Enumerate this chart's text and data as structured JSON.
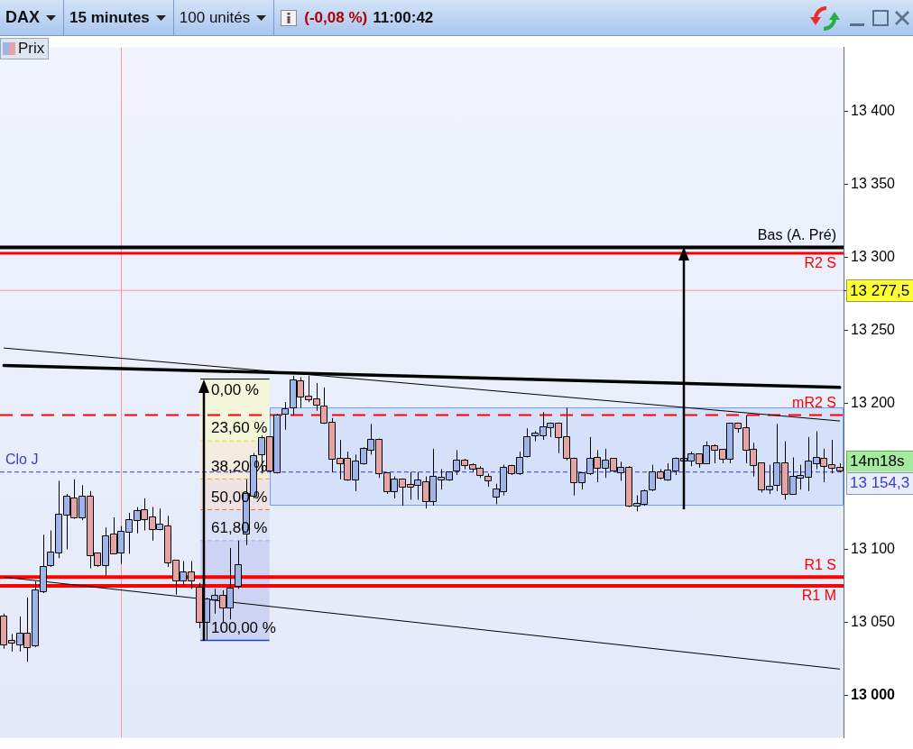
{
  "chart_data": {
    "type": "candlestick",
    "title": "DAX",
    "annotations": [
      "15 minutes",
      "100 unités",
      "(-0,08 %)",
      "11:00:42",
      "14m18s",
      "13 154,3",
      {
        "text": "0,00 %",
        "y": 13216.7
      },
      {
        "text": "23,60 %",
        "y": 13174.4
      },
      {
        "text": "38,20 %",
        "y": 13148.3
      },
      {
        "text": "50,00 %",
        "y": 13127.2
      },
      {
        "text": "61,80 %",
        "y": 13106.1
      },
      {
        "text": "100,00 %",
        "y": 13037.6
      }
    ],
    "categories": [
      null,
      null,
      null,
      null,
      null,
      null,
      null,
      null,
      null,
      null,
      null,
      null,
      null,
      null,
      null,
      null,
      null,
      null,
      null,
      null,
      null,
      null,
      null,
      null,
      null,
      null,
      null,
      null,
      null,
      null,
      null,
      null,
      null,
      null,
      null,
      null,
      null,
      null,
      null,
      null,
      null,
      null,
      null,
      null,
      null,
      null,
      null,
      null,
      null,
      null,
      null,
      null,
      null,
      null,
      null,
      null,
      null,
      null,
      null,
      null,
      null,
      null,
      null,
      null,
      null,
      null,
      null,
      null,
      null,
      null,
      null,
      null,
      null,
      null,
      null,
      null,
      null,
      null,
      null,
      null,
      null,
      null,
      null,
      null,
      null,
      null,
      null,
      null,
      null,
      null,
      null,
      null,
      null,
      null,
      null,
      null,
      null,
      null,
      null,
      null,
      null,
      null,
      null,
      null,
      null,
      null,
      null,
      null
    ],
    "series": [
      {
        "name": "Prix",
        "ohlc": [
          [
            13054,
            13056,
            13032,
            13035
          ],
          [
            13037,
            13042,
            13030,
            13036
          ],
          [
            13035,
            13054,
            13030,
            13042
          ],
          [
            13042,
            13067,
            13023,
            13033
          ],
          [
            13034,
            13078,
            13033,
            13072
          ],
          [
            13071,
            13110,
            13070,
            13088
          ],
          [
            13089,
            13113,
            13088,
            13098
          ],
          [
            13098,
            13147,
            13094,
            13124
          ],
          [
            13124,
            13138,
            13100,
            13136
          ],
          [
            13135,
            13148,
            13121,
            13122
          ],
          [
            13122,
            13144,
            13120,
            13136
          ],
          [
            13136,
            13140,
            13087,
            13096
          ],
          [
            13097,
            13097,
            13088,
            13089
          ],
          [
            13089,
            13115,
            13082,
            13109
          ],
          [
            13110,
            13122,
            13097,
            13097
          ],
          [
            13098,
            13116,
            13090,
            13112
          ],
          [
            13112,
            13125,
            13097,
            13120
          ],
          [
            13120,
            13129,
            13111,
            13126
          ],
          [
            13127,
            13135,
            13113,
            13121
          ],
          [
            13122,
            13129,
            13106,
            13114
          ],
          [
            13114,
            13128,
            13113,
            13117
          ],
          [
            13116,
            13123,
            13088,
            13091
          ],
          [
            13092,
            13092,
            13069,
            13079
          ],
          [
            13079,
            13092,
            13076,
            13084
          ],
          [
            13084,
            13092,
            13073,
            13079
          ],
          [
            13074,
            13077,
            13046,
            13050
          ],
          [
            13050,
            13067,
            13038,
            13066
          ],
          [
            13066,
            13073,
            13056,
            13068
          ],
          [
            13068,
            13072,
            13050,
            13060
          ],
          [
            13060,
            13101,
            13052,
            13073
          ],
          [
            13075,
            13106,
            13073,
            13089
          ],
          [
            13111,
            13148,
            13103,
            13138
          ],
          [
            13137,
            13166,
            13135,
            13164
          ],
          [
            13165,
            13178,
            13152,
            13176
          ],
          [
            13177,
            13177,
            13153,
            13154
          ],
          [
            13153,
            13193,
            13152,
            13192
          ],
          [
            13193,
            13201,
            13182,
            13196
          ],
          [
            13197,
            13219,
            13192,
            13216
          ],
          [
            13215,
            13218,
            13197,
            13205
          ],
          [
            13205,
            13219,
            13201,
            13203
          ],
          [
            13203,
            13214,
            13195,
            13199
          ],
          [
            13198,
            13211,
            13186,
            13187
          ],
          [
            13187,
            13190,
            13153,
            13162
          ],
          [
            13162,
            13175,
            13148,
            13159
          ],
          [
            13162,
            13167,
            13147,
            13148
          ],
          [
            13148,
            13165,
            13140,
            13160
          ],
          [
            13159,
            13170,
            13158,
            13169
          ],
          [
            13168,
            13186,
            13165,
            13175
          ],
          [
            13175,
            13176,
            13149,
            13152
          ],
          [
            13152,
            13152,
            13138,
            13140
          ],
          [
            13140,
            13150,
            13135,
            13148
          ],
          [
            13148,
            13148,
            13130,
            13143
          ],
          [
            13144,
            13153,
            13134,
            13143
          ],
          [
            13144,
            13153,
            13134,
            13147
          ],
          [
            13146,
            13150,
            13128,
            13133
          ],
          [
            13133,
            13169,
            13130,
            13150
          ],
          [
            13148,
            13155,
            13141,
            13148
          ],
          [
            13148,
            13153,
            13147,
            13153
          ],
          [
            13154,
            13168,
            13151,
            13161
          ],
          [
            13161,
            13162,
            13155,
            13158
          ],
          [
            13158,
            13159,
            13153,
            13155
          ],
          [
            13155,
            13157,
            13149,
            13151
          ],
          [
            13150,
            13152,
            13143,
            13147
          ],
          [
            13136,
            13145,
            13131,
            13141
          ],
          [
            13140,
            13158,
            13137,
            13156
          ],
          [
            13157,
            13158,
            13151,
            13152
          ],
          [
            13152,
            13167,
            13151,
            13163
          ],
          [
            13164,
            13183,
            13163,
            13177
          ],
          [
            13178,
            13181,
            13174,
            13178
          ],
          [
            13178,
            13194,
            13175,
            13184
          ],
          [
            13184,
            13187,
            13177,
            13186
          ],
          [
            13186,
            13187,
            13166,
            13177
          ],
          [
            13177,
            13197,
            13161,
            13163
          ],
          [
            13162,
            13163,
            13137,
            13146
          ],
          [
            13146,
            13152,
            13141,
            13152
          ],
          [
            13152,
            13177,
            13151,
            13162
          ],
          [
            13163,
            13168,
            13146,
            13156
          ],
          [
            13156,
            13169,
            13149,
            13161
          ],
          [
            13162,
            13162,
            13153,
            13154
          ],
          [
            13153,
            13160,
            13147,
            13156
          ],
          [
            13156,
            13157,
            13129,
            13130
          ],
          [
            13130,
            13137,
            13126,
            13130
          ],
          [
            13131,
            13141,
            13130,
            13140
          ],
          [
            13141,
            13158,
            13140,
            13153
          ],
          [
            13153,
            13155,
            13148,
            13149
          ],
          [
            13148,
            13159,
            13147,
            13154
          ],
          [
            13154,
            13163,
            13151,
            13162
          ],
          [
            13161,
            13163,
            13160,
            13162
          ],
          [
            13161,
            13167,
            13157,
            13165
          ],
          [
            13165,
            13165,
            13156,
            13159
          ],
          [
            13159,
            13174,
            13159,
            13171
          ],
          [
            13171,
            13172,
            13159,
            13168
          ],
          [
            13168,
            13168,
            13159,
            13162
          ],
          [
            13162,
            13186,
            13159,
            13186
          ],
          [
            13186,
            13187,
            13180,
            13183
          ],
          [
            13183,
            13192,
            13159,
            13168
          ],
          [
            13168,
            13173,
            13150,
            13158
          ],
          [
            13159,
            13159,
            13139,
            13141
          ],
          [
            13141,
            13158,
            13138,
            13143
          ],
          [
            13144,
            13186,
            13140,
            13159
          ],
          [
            13159,
            13174,
            13134,
            13138
          ],
          [
            13138,
            13163,
            13138,
            13150
          ],
          [
            13149,
            13158,
            13141,
            13150
          ],
          [
            13150,
            13177,
            13140,
            13160
          ],
          [
            13159,
            13181,
            13155,
            13163
          ],
          [
            13162,
            13169,
            13146,
            13157
          ],
          [
            13158,
            13175,
            13152,
            13156
          ],
          [
            13156,
            13159,
            13153,
            13154.3
          ]
        ],
        "colors": [
          "#e5a3a5",
          "#e5a3a5",
          "#9db5e9",
          "#e5a3a5",
          "#9db5e9",
          "#9db5e9",
          "#9db5e9",
          "#9db5e9",
          "#9db5e9",
          "#e5a3a5",
          "#9db5e9",
          "#e5a3a5",
          "#e5a3a5",
          "#9db5e9",
          "#e5a3a5",
          "#9db5e9",
          "#9db5e9",
          "#9db5e9",
          "#e5a3a5",
          "#e5a3a5",
          "#9db5e9",
          "#e5a3a5",
          "#e5a3a5",
          "#9db5e9",
          "#e5a3a5",
          "#e5a3a5",
          "#9db5e9",
          "#9db5e9",
          "#e5a3a5",
          "#9db5e9",
          "#9db5e9",
          "#9db5e9",
          "#9db5e9",
          "#9db5e9",
          "#e5a3a5",
          "#9db5e9",
          "#9db5e9",
          "#9db5e9",
          "#e5a3a5",
          "#e5a3a5",
          "#e5a3a5",
          "#e5a3a5",
          "#e5a3a5",
          "#e5a3a5",
          "#e5a3a5",
          "#9db5e9",
          "#9db5e9",
          "#9db5e9",
          "#e5a3a5",
          "#e5a3a5",
          "#9db5e9",
          "#e5a3a5",
          "#e5a3a5",
          "#9db5e9",
          "#e5a3a5",
          "#9db5e9",
          "#9db5e9",
          "#9db5e9",
          "#9db5e9",
          "#e5a3a5",
          "#e5a3a5",
          "#e5a3a5",
          "#e5a3a5",
          "#9db5e9",
          "#9db5e9",
          "#e5a3a5",
          "#9db5e9",
          "#9db5e9",
          "#9db5e9",
          "#9db5e9",
          "#9db5e9",
          "#e5a3a5",
          "#e5a3a5",
          "#e5a3a5",
          "#9db5e9",
          "#9db5e9",
          "#e5a3a5",
          "#9db5e9",
          "#e5a3a5",
          "#9db5e9",
          "#e5a3a5",
          "#9db5e9",
          "#9db5e9",
          "#9db5e9",
          "#e5a3a5",
          "#9db5e9",
          "#9db5e9",
          "#9db5e9",
          "#9db5e9",
          "#e5a3a5",
          "#9db5e9",
          "#e5a3a5",
          "#e5a3a5",
          "#9db5e9",
          "#e5a3a5",
          "#e5a3a5",
          "#e5a3a5",
          "#e5a3a5",
          "#9db5e9",
          "#9db5e9",
          "#e5a3a5",
          "#9db5e9",
          "#9db5e9",
          "#9db5e9",
          "#9db5e9",
          "#e5a3a5",
          "#e5a3a5",
          "#e5a3a5"
        ]
      },
      {
        "type": "line",
        "color": "#000000",
        "values": [
          13226,
          null,
          null,
          null,
          null,
          null,
          null,
          null,
          null,
          null,
          null,
          null,
          null,
          null,
          null,
          null,
          null,
          null,
          null,
          null,
          null,
          null,
          null,
          null,
          null,
          null,
          null,
          null,
          null,
          null,
          null,
          null,
          null,
          null,
          null,
          null,
          null,
          null,
          null,
          null,
          null,
          null,
          null,
          null,
          null,
          null,
          null,
          null,
          null,
          null,
          null,
          null,
          null,
          null,
          null,
          null,
          null,
          null,
          null,
          null,
          null,
          null,
          null,
          null,
          null,
          null,
          null,
          null,
          null,
          null,
          null,
          null,
          null,
          null,
          null,
          null,
          null,
          null,
          null,
          null,
          null,
          null,
          null,
          null,
          null,
          null,
          null,
          null,
          null,
          null,
          null,
          null,
          null,
          null,
          null,
          null,
          null,
          null,
          null,
          null,
          null,
          null,
          null,
          null,
          null,
          null,
          null,
          13211
        ]
      },
      {
        "type": "line",
        "color": "#000000",
        "values": [
          13238,
          null,
          null,
          null,
          null,
          null,
          null,
          null,
          null,
          null,
          null,
          null,
          null,
          null,
          null,
          null,
          null,
          null,
          null,
          null,
          null,
          null,
          null,
          null,
          null,
          null,
          null,
          null,
          null,
          null,
          null,
          null,
          null,
          null,
          null,
          null,
          null,
          null,
          null,
          null,
          null,
          null,
          null,
          null,
          null,
          null,
          null,
          null,
          null,
          null,
          null,
          null,
          null,
          null,
          null,
          null,
          null,
          null,
          null,
          null,
          null,
          null,
          null,
          null,
          null,
          null,
          null,
          null,
          null,
          null,
          null,
          null,
          null,
          null,
          null,
          null,
          null,
          null,
          null,
          null,
          null,
          null,
          null,
          null,
          null,
          null,
          null,
          null,
          null,
          null,
          null,
          null,
          null,
          null,
          null,
          null,
          null,
          null,
          null,
          null,
          null,
          null,
          null,
          null,
          null,
          null,
          null,
          13188
        ]
      },
      {
        "type": "line",
        "color": "#000000",
        "values": [
          13081,
          null,
          null,
          null,
          null,
          null,
          null,
          null,
          null,
          null,
          null,
          null,
          null,
          null,
          null,
          null,
          null,
          null,
          null,
          null,
          null,
          null,
          null,
          null,
          null,
          null,
          null,
          null,
          null,
          null,
          null,
          null,
          null,
          null,
          null,
          null,
          null,
          null,
          null,
          null,
          null,
          null,
          null,
          null,
          null,
          null,
          null,
          null,
          null,
          null,
          null,
          null,
          null,
          null,
          null,
          null,
          null,
          null,
          null,
          null,
          null,
          null,
          null,
          null,
          null,
          null,
          null,
          null,
          null,
          null,
          null,
          null,
          null,
          null,
          null,
          null,
          null,
          null,
          null,
          null,
          null,
          null,
          null,
          null,
          null,
          null,
          null,
          null,
          null,
          null,
          null,
          null,
          null,
          null,
          null,
          null,
          null,
          null,
          null,
          null,
          null,
          null,
          null,
          null,
          null,
          null,
          null,
          13018
        ]
      }
    ],
    "ylim": [
      12971,
      13444
    ],
    "yticks": [
      {
        "value": 13000,
        "label": "13 000"
      },
      {
        "value": 13050,
        "label": "13 050"
      },
      {
        "value": 13100,
        "label": "13 100"
      },
      {
        "value": 13200,
        "label": "13 200"
      },
      {
        "value": 13250,
        "label": "13 250"
      },
      {
        "value": 13300,
        "label": "13 300"
      },
      {
        "value": 13350,
        "label": "13 350"
      },
      {
        "value": 13400,
        "label": "13 400"
      }
    ],
    "ref_lines": [
      {
        "axis": "y",
        "value": 13307,
        "label": "Bas (A. Pré)",
        "color": "#000000"
      },
      {
        "axis": "y",
        "value": 13303,
        "label": "R2 S",
        "color": "#ff0000"
      },
      {
        "axis": "y",
        "value": 13277.5,
        "label": "13 277,5",
        "color": "#f2a0a0"
      },
      {
        "axis": "y",
        "value": 13192,
        "label": "mR2 S",
        "color": "#ff0000",
        "line_style": "dashed"
      },
      {
        "axis": "y",
        "value": 13153,
        "label": "Clo J",
        "color": "#3a3ad0",
        "line_style": "dashed"
      },
      {
        "axis": "y",
        "value": 13081,
        "label": "R1 S",
        "color": "#ff0000"
      },
      {
        "axis": "y",
        "value": 13075,
        "label": "R1 M",
        "color": "#ff0000"
      },
      {
        "axis": "y",
        "value": 13216.7,
        "color": "#000000"
      },
      {
        "axis": "y",
        "value": 13174.4,
        "color": "#f0e000",
        "line_style": "dashed"
      },
      {
        "axis": "y",
        "value": 13148.3,
        "color": "#f5a623",
        "line_style": "dashed"
      },
      {
        "axis": "y",
        "value": 13127.2,
        "color": "#f07030",
        "line_style": "dashed"
      },
      {
        "axis": "y",
        "value": 13106.1,
        "color": "#a8c0f0",
        "line_style": "dashed"
      },
      {
        "axis": "y",
        "value": 13037.6,
        "color": "#2040e0"
      }
    ],
    "bands": [
      {
        "axis": "y",
        "from": 13130,
        "to": 13197,
        "color": "#d5e1fb"
      },
      {
        "axis": "y",
        "from": 13174.4,
        "to": 13216.7,
        "color": "#f3f6da"
      },
      {
        "axis": "y",
        "from": 13148.3,
        "to": 13174.4,
        "color": "#f1ebe0"
      },
      {
        "axis": "y",
        "from": 13127.2,
        "to": 13148.3,
        "color": "#f0e2e3"
      },
      {
        "axis": "y",
        "from": 13106.1,
        "to": 13127.2,
        "color": "#dae1f7"
      },
      {
        "axis": "y",
        "from": 13037.6,
        "to": 13106.1,
        "color": "#ccd3f3"
      }
    ],
    "legend": "top left",
    "tick_labels": "y"
  }
}
